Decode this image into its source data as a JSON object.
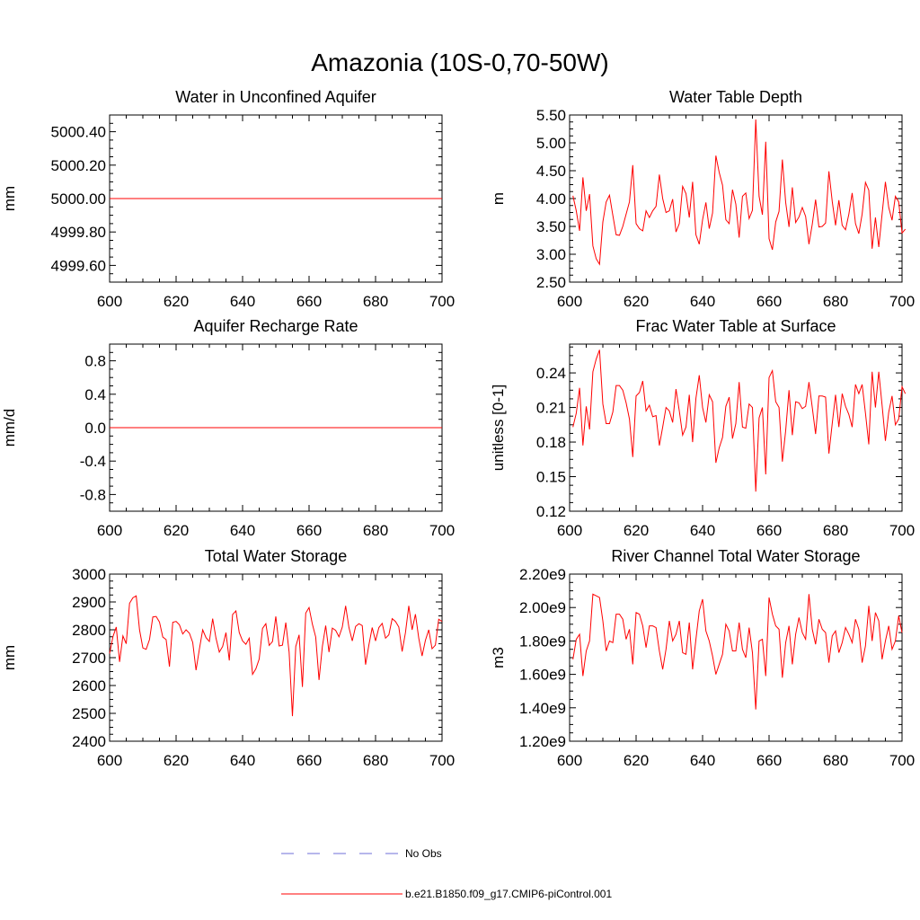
{
  "figure": {
    "title": "Amazonia (10S-0,70-50W)",
    "legend": [
      {
        "label": "No Obs",
        "color": "#6f6fd8",
        "style": "dashed"
      },
      {
        "label": "b.e21.B1850.f09_g17.CMIP6-piControl.001",
        "color": "#ff0000",
        "style": "solid"
      }
    ]
  },
  "chart_data": [
    {
      "type": "line",
      "title": "Water in Unconfined Aquifer",
      "xlabel": "",
      "ylabel": "mm",
      "xlim": [
        600,
        700
      ],
      "xticks": [
        "600",
        "620",
        "640",
        "660",
        "680",
        "700"
      ],
      "ylim": [
        4999.5,
        5000.5
      ],
      "yticks": [
        "4999.60",
        "4999.80",
        "5000.00",
        "5000.20",
        "5000.40"
      ],
      "series": [
        {
          "name": "b.e21.B1850.f09_g17.CMIP6-piControl.001",
          "color": "#ff0000",
          "x_start": 600,
          "x_step": 1,
          "values": [
            5000,
            5000,
            5000,
            5000,
            5000,
            5000,
            5000,
            5000,
            5000,
            5000,
            5000,
            5000,
            5000,
            5000,
            5000,
            5000,
            5000,
            5000,
            5000,
            5000,
            5000,
            5000,
            5000,
            5000,
            5000,
            5000,
            5000,
            5000,
            5000,
            5000,
            5000,
            5000,
            5000,
            5000,
            5000,
            5000,
            5000,
            5000,
            5000,
            5000,
            5000,
            5000,
            5000,
            5000,
            5000,
            5000,
            5000,
            5000,
            5000,
            5000,
            5000,
            5000,
            5000,
            5000,
            5000,
            5000,
            5000,
            5000,
            5000,
            5000,
            5000,
            5000,
            5000,
            5000,
            5000,
            5000,
            5000,
            5000,
            5000,
            5000,
            5000,
            5000,
            5000,
            5000,
            5000,
            5000,
            5000,
            5000,
            5000,
            5000,
            5000,
            5000,
            5000,
            5000,
            5000,
            5000,
            5000,
            5000,
            5000,
            5000,
            5000,
            5000,
            5000,
            5000,
            5000,
            5000,
            5000,
            5000,
            5000,
            5000,
            5000
          ]
        }
      ]
    },
    {
      "type": "line",
      "title": "Water Table Depth",
      "xlabel": "",
      "ylabel": "m",
      "xlim": [
        600,
        700
      ],
      "xticks": [
        "600",
        "620",
        "640",
        "660",
        "680",
        "700"
      ],
      "ylim": [
        2.5,
        5.5
      ],
      "yticks": [
        "2.50",
        "3.00",
        "3.50",
        "4.00",
        "4.50",
        "5.00",
        "5.50"
      ],
      "series": [
        {
          "name": "b.e21.B1850.f09_g17.CMIP6-piControl.001",
          "color": "#ff0000",
          "x_start": 601,
          "x_step": 1,
          "values": [
            4.05,
            3.78,
            3.42,
            4.38,
            3.78,
            4.08,
            3.15,
            2.92,
            2.82,
            3.58,
            3.94,
            4.06,
            3.7,
            3.35,
            3.34,
            3.5,
            3.72,
            3.94,
            4.6,
            3.55,
            3.46,
            3.42,
            3.78,
            3.66,
            3.78,
            3.86,
            4.43,
            4.0,
            3.75,
            3.78,
            3.99,
            3.4,
            3.55,
            4.22,
            4.09,
            3.66,
            4.3,
            3.35,
            3.18,
            3.62,
            3.93,
            3.46,
            3.74,
            4.77,
            4.47,
            4.24,
            3.62,
            3.55,
            4.16,
            3.9,
            3.3,
            4.04,
            4.1,
            3.64,
            3.79,
            5.42,
            4.04,
            3.71,
            5.02,
            3.28,
            3.08,
            3.58,
            3.77,
            4.7,
            3.93,
            3.49,
            4.2,
            3.57,
            3.67,
            3.84,
            3.68,
            3.18,
            3.54,
            3.98,
            3.49,
            3.5,
            3.56,
            4.49,
            3.95,
            3.52,
            3.97,
            3.52,
            3.44,
            3.72,
            4.1,
            3.55,
            3.37,
            3.72,
            4.29,
            4.15,
            3.1,
            3.66,
            3.13,
            3.72,
            4.3,
            3.84,
            3.61,
            4.04,
            3.94,
            3.38,
            3.45
          ]
        }
      ]
    },
    {
      "type": "line",
      "title": "Aquifer Recharge Rate",
      "xlabel": "",
      "ylabel": "mm/d",
      "xlim": [
        600,
        700
      ],
      "xticks": [
        "600",
        "620",
        "640",
        "660",
        "680",
        "700"
      ],
      "ylim": [
        -1,
        1
      ],
      "yticks": [
        "-0.8",
        "-0.4",
        "0.0",
        "0.4",
        "0.8"
      ],
      "series": [
        {
          "name": "b.e21.B1850.f09_g17.CMIP6-piControl.001",
          "color": "#ff0000",
          "x_start": 600,
          "x_step": 1,
          "values": [
            0,
            0,
            0,
            0,
            0,
            0,
            0,
            0,
            0,
            0,
            0,
            0,
            0,
            0,
            0,
            0,
            0,
            0,
            0,
            0,
            0,
            0,
            0,
            0,
            0,
            0,
            0,
            0,
            0,
            0,
            0,
            0,
            0,
            0,
            0,
            0,
            0,
            0,
            0,
            0,
            0,
            0,
            0,
            0,
            0,
            0,
            0,
            0,
            0,
            0,
            0,
            0,
            0,
            0,
            0,
            0,
            0,
            0,
            0,
            0,
            0,
            0,
            0,
            0,
            0,
            0,
            0,
            0,
            0,
            0,
            0,
            0,
            0,
            0,
            0,
            0,
            0,
            0,
            0,
            0,
            0,
            0,
            0,
            0,
            0,
            0,
            0,
            0,
            0,
            0,
            0,
            0,
            0,
            0,
            0,
            0,
            0,
            0,
            0,
            0,
            0
          ]
        }
      ]
    },
    {
      "type": "line",
      "title": "Frac Water Table at Surface",
      "xlabel": "",
      "ylabel": "unitless [0-1]",
      "xlim": [
        600,
        700
      ],
      "xticks": [
        "600",
        "620",
        "640",
        "660",
        "680",
        "700"
      ],
      "ylim": [
        0.12,
        0.265
      ],
      "yticks": [
        "0.12",
        "0.15",
        "0.18",
        "0.21",
        "0.24"
      ],
      "series": [
        {
          "name": "b.e21.B1850.f09_g17.CMIP6-piControl.001",
          "color": "#ff0000",
          "x_start": 601,
          "x_step": 1,
          "values": [
            0.193,
            0.205,
            0.227,
            0.177,
            0.211,
            0.191,
            0.241,
            0.252,
            0.26,
            0.213,
            0.196,
            0.196,
            0.206,
            0.229,
            0.229,
            0.225,
            0.214,
            0.2,
            0.167,
            0.22,
            0.223,
            0.233,
            0.207,
            0.212,
            0.202,
            0.203,
            0.177,
            0.193,
            0.21,
            0.207,
            0.197,
            0.226,
            0.207,
            0.186,
            0.193,
            0.221,
            0.18,
            0.218,
            0.238,
            0.21,
            0.197,
            0.221,
            0.215,
            0.162,
            0.175,
            0.184,
            0.211,
            0.219,
            0.183,
            0.196,
            0.232,
            0.193,
            0.192,
            0.213,
            0.21,
            0.137,
            0.201,
            0.21,
            0.152,
            0.236,
            0.242,
            0.215,
            0.21,
            0.163,
            0.19,
            0.225,
            0.186,
            0.215,
            0.214,
            0.209,
            0.211,
            0.232,
            0.21,
            0.187,
            0.22,
            0.22,
            0.219,
            0.17,
            0.196,
            0.221,
            0.193,
            0.222,
            0.211,
            0.204,
            0.193,
            0.23,
            0.222,
            0.23,
            0.205,
            0.178,
            0.241,
            0.21,
            0.241,
            0.212,
            0.181,
            0.206,
            0.22,
            0.195,
            0.2,
            0.228,
            0.222
          ]
        }
      ]
    },
    {
      "type": "line",
      "title": "Total Water Storage",
      "xlabel": "",
      "ylabel": "mm",
      "xlim": [
        600,
        700
      ],
      "xticks": [
        "600",
        "620",
        "640",
        "660",
        "680",
        "700"
      ],
      "ylim": [
        2400,
        3000
      ],
      "yticks": [
        "2400",
        "2500",
        "2600",
        "2700",
        "2800",
        "2900",
        "3000"
      ],
      "series": [
        {
          "name": "b.e21.B1850.f09_g17.CMIP6-piControl.001",
          "color": "#ff0000",
          "x_start": 600,
          "x_step": 1,
          "values": [
            2715,
            2775,
            2810,
            2685,
            2778,
            2750,
            2895,
            2915,
            2922,
            2800,
            2735,
            2730,
            2765,
            2846,
            2848,
            2828,
            2774,
            2765,
            2668,
            2827,
            2830,
            2818,
            2785,
            2800,
            2788,
            2755,
            2655,
            2730,
            2800,
            2772,
            2758,
            2840,
            2770,
            2720,
            2740,
            2790,
            2690,
            2855,
            2868,
            2790,
            2760,
            2748,
            2770,
            2640,
            2660,
            2695,
            2805,
            2822,
            2744,
            2758,
            2848,
            2742,
            2745,
            2826,
            2720,
            2490,
            2740,
            2782,
            2595,
            2860,
            2880,
            2820,
            2774,
            2620,
            2740,
            2815,
            2720,
            2806,
            2798,
            2775,
            2810,
            2886,
            2808,
            2760,
            2812,
            2822,
            2815,
            2675,
            2746,
            2808,
            2760,
            2808,
            2823,
            2770,
            2782,
            2840,
            2830,
            2810,
            2722,
            2790,
            2886,
            2800,
            2856,
            2770,
            2706,
            2762,
            2800,
            2732,
            2745,
            2838,
            2830
          ]
        }
      ]
    },
    {
      "type": "line",
      "title": "River Channel Total Water Storage",
      "xlabel": "",
      "ylabel": "m3",
      "xlim": [
        600,
        700
      ],
      "xticks": [
        "600",
        "620",
        "640",
        "660",
        "680",
        "700"
      ],
      "ylim": [
        1200000000.0,
        2200000000.0
      ],
      "yticks": [
        "1.20e9",
        "1.40e9",
        "1.60e9",
        "1.80e9",
        "2.00e9",
        "2.20e9"
      ],
      "series": [
        {
          "name": "b.e21.B1850.f09_g17.CMIP6-piControl.001",
          "color": "#ff0000",
          "x_start": 601,
          "x_step": 1,
          "values": [
            1690000000.0,
            1810000000.0,
            1840000000.0,
            1590000000.0,
            1740000000.0,
            1800000000.0,
            2080000000.0,
            2070000000.0,
            2060000000.0,
            1920000000.0,
            1740000000.0,
            1800000000.0,
            1790000000.0,
            1960000000.0,
            1960000000.0,
            1930000000.0,
            1810000000.0,
            1870000000.0,
            1660000000.0,
            1970000000.0,
            1960000000.0,
            1890000000.0,
            1760000000.0,
            1890000000.0,
            1890000000.0,
            1880000000.0,
            1740000000.0,
            1630000000.0,
            1750000000.0,
            1920000000.0,
            1800000000.0,
            1840000000.0,
            1920000000.0,
            1730000000.0,
            1720000000.0,
            1910000000.0,
            1630000000.0,
            1810000000.0,
            1980000000.0,
            2050000000.0,
            1860000000.0,
            1800000000.0,
            1710000000.0,
            1600000000.0,
            1660000000.0,
            1720000000.0,
            1900000000.0,
            1860000000.0,
            1740000000.0,
            1740000000.0,
            1910000000.0,
            1750000000.0,
            1700000000.0,
            1880000000.0,
            1730000000.0,
            1390000000.0,
            1800000000.0,
            1810000000.0,
            1590000000.0,
            2060000000.0,
            1960000000.0,
            1890000000.0,
            1870000000.0,
            1580000000.0,
            1790000000.0,
            1890000000.0,
            1660000000.0,
            1840000000.0,
            1940000000.0,
            1850000000.0,
            1810000000.0,
            2080000000.0,
            1870000000.0,
            1780000000.0,
            1930000000.0,
            1870000000.0,
            1850000000.0,
            1670000000.0,
            1830000000.0,
            1860000000.0,
            1730000000.0,
            1790000000.0,
            1880000000.0,
            1840000000.0,
            1790000000.0,
            1930000000.0,
            1870000000.0,
            1670000000.0,
            1770000000.0,
            2010000000.0,
            1800000000.0,
            1970000000.0,
            1920000000.0,
            1690000000.0,
            1800000000.0,
            1890000000.0,
            1750000000.0,
            1800000000.0,
            1950000000.0,
            1850000000.0
          ]
        }
      ]
    }
  ]
}
